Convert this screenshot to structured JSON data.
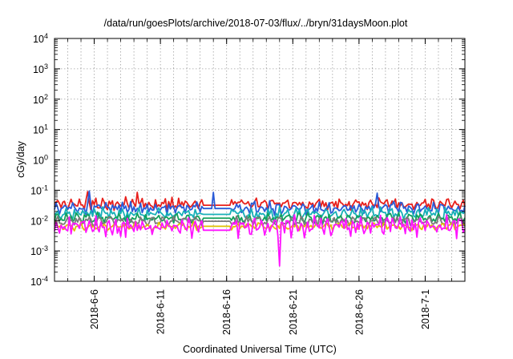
{
  "chart_data": {
    "type": "line",
    "title": "/data/run/goesPlots/archive/2018-07-03/flux/../bryn/31daysMoon.plot",
    "xlabel": "Coordinated Universal Time (UTC)",
    "ylabel": "cGy/day",
    "yscale": "log",
    "ylim": [
      0.0001,
      10000
    ],
    "xlim": [
      "2018-06-03",
      "2018-07-04"
    ],
    "grid": true,
    "y_ticks": [
      {
        "base": "10",
        "exp": "4"
      },
      {
        "base": "10",
        "exp": "3"
      },
      {
        "base": "10",
        "exp": "2"
      },
      {
        "base": "10",
        "exp": "1"
      },
      {
        "base": "10",
        "exp": "0"
      },
      {
        "base": "10",
        "exp": "-1"
      },
      {
        "base": "10",
        "exp": "-2"
      },
      {
        "base": "10",
        "exp": "-3"
      },
      {
        "base": "10",
        "exp": "-4"
      }
    ],
    "x_ticks": [
      {
        "label": "2018-6-6",
        "date": "2018-06-06"
      },
      {
        "label": "2018-6-11",
        "date": "2018-06-11"
      },
      {
        "label": "2018-6-16",
        "date": "2018-06-16"
      },
      {
        "label": "2018-6-21",
        "date": "2018-06-21"
      },
      {
        "label": "2018-6-26",
        "date": "2018-06-26"
      },
      {
        "label": "2018-7-1",
        "date": "2018-07-01"
      }
    ],
    "series": [
      {
        "color": "#e8201c",
        "base": 0.035,
        "spread": 0.18,
        "period": 0.58,
        "gap_value": 0.032,
        "spikes": [
          {
            "date": "2018-06-05T12:00",
            "value": 0.09
          },
          {
            "date": "2018-06-09T06:00",
            "value": 0.085
          }
        ]
      },
      {
        "color": "#2a5bd7",
        "base": 0.026,
        "spread": 0.2,
        "period": 0.62,
        "gap_value": 0.025,
        "spikes": [
          {
            "date": "2018-06-05T14:00",
            "value": 0.095
          },
          {
            "date": "2018-06-15T00:00",
            "value": 0.085
          },
          {
            "date": "2018-06-27T09:00",
            "value": 0.08
          }
        ]
      },
      {
        "color": "#17b0b8",
        "base": 0.017,
        "spread": 0.18,
        "period": 0.7,
        "gap_value": 0.016,
        "spikes": []
      },
      {
        "color": "#12a05c",
        "base": 0.012,
        "spread": 0.16,
        "period": 0.76,
        "gap_value": 0.012,
        "spikes": []
      },
      {
        "color": "#7a7a7a",
        "base": 0.0095,
        "spread": 0.15,
        "period": 0.8,
        "gap_value": 0.0095,
        "spikes": []
      },
      {
        "color": "#e0c000",
        "base": 0.0065,
        "spread": 0.12,
        "period": 0.85,
        "gap_value": 0.0065,
        "spikes": []
      },
      {
        "color": "#ff14ff",
        "base": 0.0065,
        "spread": 0.3,
        "period": 0.5,
        "gap_value": 0.0048,
        "spikes": [
          {
            "date": "2018-06-19T23:00",
            "value": 0.00032
          },
          {
            "date": "2018-06-20T22:00",
            "value": 0.0027
          },
          {
            "date": "2018-06-08T00:00",
            "value": 0.003
          }
        ]
      }
    ],
    "data_gap": {
      "start": "2018-06-14T04:00",
      "end": "2018-06-16T08:00"
    },
    "sample_hours": 3
  }
}
